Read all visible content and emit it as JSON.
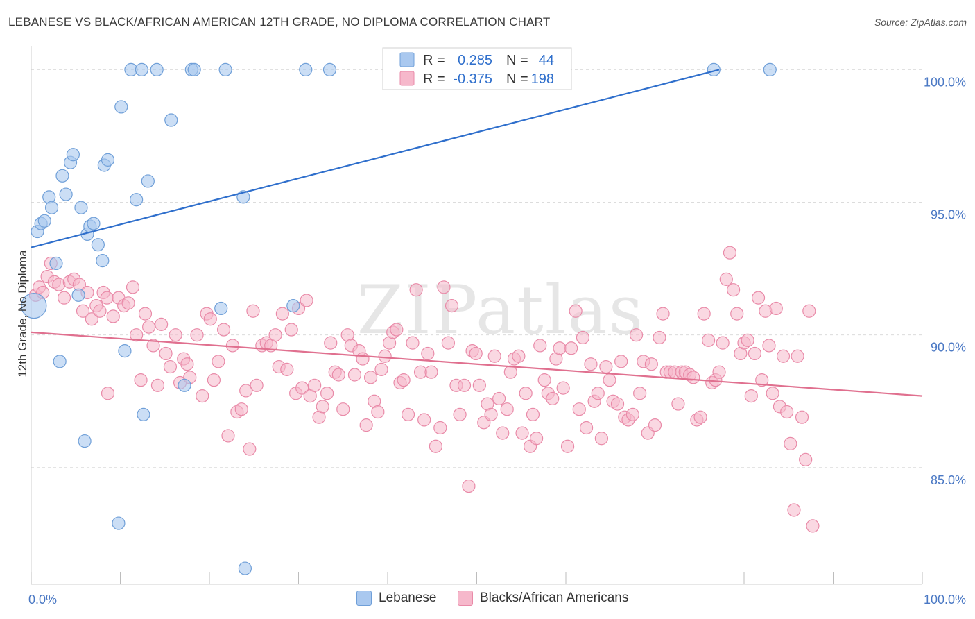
{
  "title": "LEBANESE VS BLACK/AFRICAN AMERICAN 12TH GRADE, NO DIPLOMA CORRELATION CHART",
  "source": "Source: ZipAtlas.com",
  "watermark": "ZIPatlas",
  "colors": {
    "blue_fill": "#a9c8ef",
    "blue_stroke": "#6f9fd8",
    "blue_line": "#2f6fcc",
    "pink_fill": "#f6b8cb",
    "pink_stroke": "#e98aa8",
    "pink_line": "#e0708f",
    "tick_text": "#4a78c4",
    "grid": "#dcdcdc"
  },
  "legend": {
    "rows": [
      {
        "r_label": "R =",
        "r_value": "0.285",
        "n_label": "N =",
        "n_value": "44"
      },
      {
        "r_label": "R =",
        "r_value": "-0.375",
        "n_label": "N =",
        "n_value": "198"
      }
    ]
  },
  "bottom_legend": {
    "items": [
      {
        "label": "Lebanese"
      },
      {
        "label": "Blacks/African Americans"
      }
    ]
  },
  "chart_data": {
    "type": "scatter",
    "title": "LEBANESE VS BLACK/AFRICAN AMERICAN 12TH GRADE, NO DIPLOMA CORRELATION CHART",
    "xlabel": "",
    "ylabel": "12th Grade, No Diploma",
    "xlim": [
      0,
      100
    ],
    "ylim": [
      80.6,
      100.9
    ],
    "x_tick_labels": [
      "0.0%",
      "100.0%"
    ],
    "y_ticks": [
      85,
      90,
      95,
      100
    ],
    "y_tick_labels": [
      "85.0%",
      "90.0%",
      "95.0%",
      "100.0%"
    ],
    "grid": true,
    "series": [
      {
        "name": "Lebanese",
        "color": "blue",
        "R": 0.285,
        "N": 44,
        "trend": {
          "x": [
            0,
            77.2
          ],
          "y": [
            93.3,
            100.0
          ]
        },
        "points": [
          [
            0.3,
            91.1
          ],
          [
            0.7,
            93.9
          ],
          [
            1.1,
            94.2
          ],
          [
            1.5,
            94.3
          ],
          [
            2.0,
            95.2
          ],
          [
            2.3,
            94.8
          ],
          [
            2.8,
            92.7
          ],
          [
            3.2,
            89.0
          ],
          [
            3.5,
            96.0
          ],
          [
            3.9,
            95.3
          ],
          [
            4.4,
            96.5
          ],
          [
            4.7,
            96.8
          ],
          [
            5.3,
            91.5
          ],
          [
            5.6,
            94.8
          ],
          [
            6.0,
            86.0
          ],
          [
            6.3,
            93.8
          ],
          [
            6.6,
            94.1
          ],
          [
            7.0,
            94.2
          ],
          [
            7.5,
            93.4
          ],
          [
            8.0,
            92.8
          ],
          [
            8.2,
            96.4
          ],
          [
            8.6,
            96.6
          ],
          [
            9.8,
            82.9
          ],
          [
            10.1,
            98.6
          ],
          [
            10.5,
            89.4
          ],
          [
            11.2,
            100.0
          ],
          [
            11.8,
            95.1
          ],
          [
            12.4,
            100.0
          ],
          [
            12.6,
            87.0
          ],
          [
            13.1,
            95.8
          ],
          [
            14.1,
            100.0
          ],
          [
            15.7,
            98.1
          ],
          [
            17.2,
            88.1
          ],
          [
            18.0,
            100.0
          ],
          [
            18.3,
            100.0
          ],
          [
            21.3,
            91.0
          ],
          [
            21.8,
            100.0
          ],
          [
            23.8,
            95.2
          ],
          [
            24.0,
            81.2
          ],
          [
            29.4,
            91.1
          ],
          [
            30.8,
            100.0
          ],
          [
            33.5,
            100.0
          ],
          [
            76.6,
            100.0
          ],
          [
            82.9,
            100.0
          ]
        ]
      },
      {
        "name": "Blacks/African Americans",
        "color": "pink",
        "R": -0.375,
        "N": 198,
        "trend": {
          "x": [
            0,
            100
          ],
          "y": [
            90.1,
            87.7
          ]
        },
        "points": [
          [
            0.5,
            91.5
          ],
          [
            0.9,
            91.8
          ],
          [
            1.3,
            91.6
          ],
          [
            1.8,
            92.2
          ],
          [
            2.2,
            92.7
          ],
          [
            2.6,
            92.0
          ],
          [
            3.1,
            91.9
          ],
          [
            3.7,
            91.4
          ],
          [
            4.3,
            92.0
          ],
          [
            4.8,
            92.1
          ],
          [
            5.4,
            91.9
          ],
          [
            5.8,
            90.9
          ],
          [
            6.3,
            91.6
          ],
          [
            6.8,
            90.6
          ],
          [
            7.3,
            91.1
          ],
          [
            7.7,
            90.9
          ],
          [
            8.1,
            91.6
          ],
          [
            8.5,
            91.4
          ],
          [
            8.6,
            87.8
          ],
          [
            9.2,
            90.7
          ],
          [
            9.8,
            91.4
          ],
          [
            10.4,
            91.1
          ],
          [
            10.9,
            91.2
          ],
          [
            11.4,
            91.8
          ],
          [
            11.8,
            90.0
          ],
          [
            12.3,
            88.3
          ],
          [
            12.8,
            90.8
          ],
          [
            13.2,
            90.3
          ],
          [
            13.7,
            89.6
          ],
          [
            14.2,
            88.1
          ],
          [
            14.6,
            90.4
          ],
          [
            15.1,
            89.3
          ],
          [
            15.6,
            88.8
          ],
          [
            16.2,
            90.0
          ],
          [
            16.7,
            88.2
          ],
          [
            17.1,
            89.1
          ],
          [
            17.5,
            88.9
          ],
          [
            17.8,
            88.4
          ],
          [
            18.6,
            90.0
          ],
          [
            19.2,
            87.7
          ],
          [
            19.7,
            90.8
          ],
          [
            20.1,
            90.6
          ],
          [
            20.5,
            88.3
          ],
          [
            21.0,
            89.0
          ],
          [
            21.6,
            90.2
          ],
          [
            22.1,
            86.2
          ],
          [
            22.6,
            89.6
          ],
          [
            23.1,
            87.1
          ],
          [
            23.6,
            87.2
          ],
          [
            24.1,
            87.9
          ],
          [
            24.5,
            85.7
          ],
          [
            24.9,
            90.9
          ],
          [
            25.3,
            88.1
          ],
          [
            25.9,
            89.6
          ],
          [
            26.4,
            89.7
          ],
          [
            26.9,
            89.6
          ],
          [
            27.4,
            90.0
          ],
          [
            27.8,
            88.8
          ],
          [
            28.2,
            90.8
          ],
          [
            28.7,
            88.7
          ],
          [
            29.2,
            90.2
          ],
          [
            29.7,
            87.8
          ],
          [
            30.0,
            91.0
          ],
          [
            30.4,
            88.0
          ],
          [
            30.9,
            91.3
          ],
          [
            31.3,
            87.7
          ],
          [
            31.8,
            88.1
          ],
          [
            32.3,
            86.9
          ],
          [
            32.7,
            87.3
          ],
          [
            33.2,
            87.8
          ],
          [
            33.6,
            89.7
          ],
          [
            34.1,
            88.6
          ],
          [
            34.5,
            88.5
          ],
          [
            35.0,
            87.2
          ],
          [
            35.5,
            90.0
          ],
          [
            35.9,
            89.6
          ],
          [
            36.3,
            88.5
          ],
          [
            36.8,
            89.4
          ],
          [
            37.2,
            89.1
          ],
          [
            37.6,
            86.6
          ],
          [
            38.1,
            88.4
          ],
          [
            38.5,
            87.5
          ],
          [
            38.9,
            87.1
          ],
          [
            39.3,
            88.7
          ],
          [
            39.7,
            89.2
          ],
          [
            40.2,
            89.7
          ],
          [
            40.6,
            90.1
          ],
          [
            41.0,
            90.2
          ],
          [
            41.4,
            88.2
          ],
          [
            41.8,
            88.3
          ],
          [
            42.3,
            87.0
          ],
          [
            42.8,
            89.7
          ],
          [
            43.2,
            91.7
          ],
          [
            43.7,
            88.6
          ],
          [
            44.1,
            86.8
          ],
          [
            44.5,
            89.3
          ],
          [
            44.9,
            88.6
          ],
          [
            45.4,
            85.8
          ],
          [
            45.9,
            86.5
          ],
          [
            46.3,
            91.8
          ],
          [
            46.8,
            89.7
          ],
          [
            47.2,
            91.1
          ],
          [
            47.7,
            88.1
          ],
          [
            48.1,
            87.0
          ],
          [
            48.6,
            88.1
          ],
          [
            49.1,
            84.3
          ],
          [
            49.5,
            89.4
          ],
          [
            49.9,
            89.3
          ],
          [
            50.3,
            88.1
          ],
          [
            50.8,
            86.7
          ],
          [
            51.2,
            87.4
          ],
          [
            51.6,
            87.0
          ],
          [
            52.0,
            89.2
          ],
          [
            52.5,
            87.6
          ],
          [
            52.9,
            86.3
          ],
          [
            53.4,
            87.2
          ],
          [
            53.8,
            88.6
          ],
          [
            54.2,
            89.1
          ],
          [
            54.7,
            89.2
          ],
          [
            55.1,
            86.3
          ],
          [
            55.5,
            87.8
          ],
          [
            56.0,
            85.8
          ],
          [
            56.3,
            87.0
          ],
          [
            56.7,
            86.1
          ],
          [
            57.1,
            89.6
          ],
          [
            57.6,
            88.3
          ],
          [
            58.0,
            87.8
          ],
          [
            58.5,
            87.6
          ],
          [
            58.9,
            89.1
          ],
          [
            59.3,
            89.5
          ],
          [
            59.7,
            88.0
          ],
          [
            60.2,
            85.8
          ],
          [
            60.6,
            89.5
          ],
          [
            61.1,
            90.9
          ],
          [
            61.5,
            87.2
          ],
          [
            61.9,
            89.9
          ],
          [
            62.3,
            86.5
          ],
          [
            62.8,
            88.9
          ],
          [
            63.2,
            87.5
          ],
          [
            63.6,
            87.8
          ],
          [
            64.0,
            86.1
          ],
          [
            64.5,
            88.8
          ],
          [
            64.9,
            88.3
          ],
          [
            65.3,
            87.5
          ],
          [
            65.8,
            87.4
          ],
          [
            66.2,
            89.0
          ],
          [
            66.6,
            86.9
          ],
          [
            67.0,
            86.8
          ],
          [
            67.5,
            87.0
          ],
          [
            67.9,
            90.0
          ],
          [
            68.3,
            87.8
          ],
          [
            68.7,
            89.0
          ],
          [
            69.2,
            86.3
          ],
          [
            69.6,
            88.9
          ],
          [
            70.0,
            86.6
          ],
          [
            70.5,
            89.9
          ],
          [
            70.9,
            90.8
          ],
          [
            71.3,
            88.6
          ],
          [
            71.7,
            88.6
          ],
          [
            72.2,
            88.6
          ],
          [
            72.6,
            87.4
          ],
          [
            73.0,
            88.6
          ],
          [
            73.4,
            88.6
          ],
          [
            73.9,
            88.5
          ],
          [
            74.3,
            88.4
          ],
          [
            74.7,
            86.8
          ],
          [
            75.1,
            86.9
          ],
          [
            75.5,
            90.8
          ],
          [
            76.0,
            89.8
          ],
          [
            76.4,
            88.2
          ],
          [
            76.8,
            88.3
          ],
          [
            77.2,
            88.6
          ],
          [
            77.6,
            89.7
          ],
          [
            78.0,
            92.1
          ],
          [
            78.4,
            93.1
          ],
          [
            78.8,
            91.7
          ],
          [
            79.2,
            90.8
          ],
          [
            79.6,
            89.3
          ],
          [
            80.0,
            89.7
          ],
          [
            80.4,
            89.8
          ],
          [
            80.8,
            87.7
          ],
          [
            81.2,
            89.3
          ],
          [
            81.6,
            91.4
          ],
          [
            82.0,
            88.3
          ],
          [
            82.4,
            90.9
          ],
          [
            82.8,
            89.6
          ],
          [
            83.2,
            87.8
          ],
          [
            83.6,
            91.0
          ],
          [
            84.0,
            87.3
          ],
          [
            84.4,
            89.2
          ],
          [
            84.8,
            87.1
          ],
          [
            85.2,
            85.9
          ],
          [
            85.6,
            83.4
          ],
          [
            86.0,
            89.2
          ],
          [
            86.5,
            86.9
          ],
          [
            86.9,
            85.3
          ],
          [
            87.3,
            90.9
          ],
          [
            87.7,
            82.8
          ]
        ]
      }
    ]
  }
}
